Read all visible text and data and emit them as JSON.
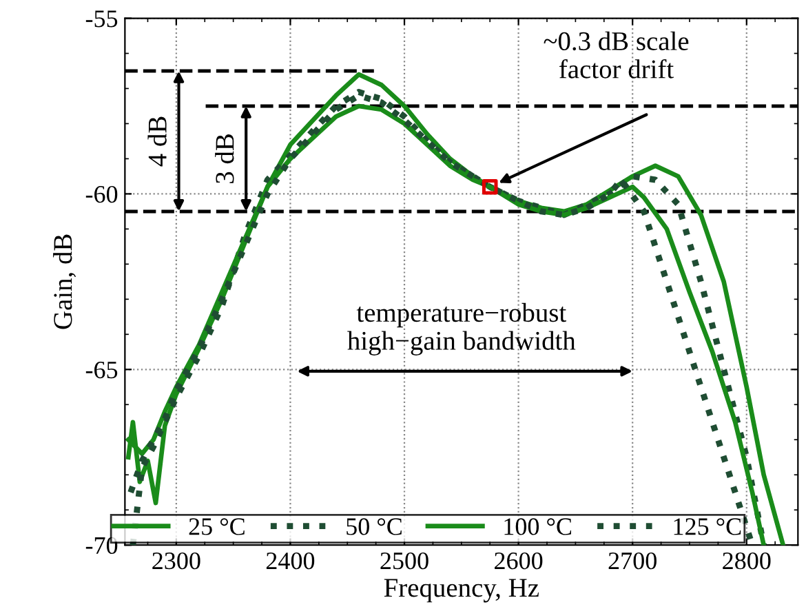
{
  "chart_data": {
    "type": "line",
    "xlabel": "Frequency, Hz",
    "ylabel": "Gain, dB",
    "xlim": [
      2255,
      2845
    ],
    "ylim": [
      -70,
      -55
    ],
    "xticks": [
      2300,
      2400,
      2500,
      2600,
      2700,
      2800
    ],
    "yticks": [
      -70,
      -65,
      -60,
      -55
    ],
    "grid": true,
    "legend": "bottom",
    "series": [
      {
        "name": "25 °C",
        "color": "#1a8c1a",
        "line_style": "solid",
        "x": [
          2258,
          2262,
          2268,
          2275,
          2282,
          2290,
          2300,
          2320,
          2340,
          2360,
          2380,
          2400,
          2420,
          2440,
          2460,
          2480,
          2500,
          2520,
          2540,
          2560,
          2575,
          2600,
          2620,
          2640,
          2660,
          2680,
          2700,
          2720,
          2740,
          2760,
          2780,
          2800,
          2815,
          2832
        ],
        "values": [
          -67.5,
          -66.5,
          -68.2,
          -67.6,
          -68.8,
          -66.6,
          -65.7,
          -64.4,
          -63.0,
          -61.4,
          -59.8,
          -58.6,
          -57.9,
          -57.2,
          -56.6,
          -56.9,
          -57.5,
          -58.3,
          -59.0,
          -59.5,
          -59.8,
          -60.2,
          -60.4,
          -60.5,
          -60.3,
          -59.9,
          -59.5,
          -59.2,
          -59.5,
          -60.6,
          -62.5,
          -65.5,
          -68.0,
          -70.0
        ]
      },
      {
        "name": "50 °C",
        "color": "#1f4d33",
        "line_style": "dotted",
        "x": [
          2262,
          2270,
          2280,
          2290,
          2300,
          2320,
          2340,
          2360,
          2380,
          2400,
          2420,
          2440,
          2460,
          2480,
          2500,
          2520,
          2540,
          2560,
          2575,
          2600,
          2620,
          2640,
          2660,
          2680,
          2700,
          2720,
          2740,
          2760,
          2780,
          2800,
          2815
        ],
        "values": [
          -70.0,
          -67.8,
          -67.2,
          -66.5,
          -65.8,
          -64.6,
          -63.2,
          -61.2,
          -59.6,
          -58.9,
          -58.2,
          -57.5,
          -57.1,
          -57.3,
          -57.8,
          -58.5,
          -59.1,
          -59.5,
          -59.8,
          -60.2,
          -60.4,
          -60.6,
          -60.3,
          -60.0,
          -59.5,
          -59.6,
          -60.3,
          -62.5,
          -65.0,
          -67.5,
          -70.0
        ]
      },
      {
        "name": "100 °C",
        "color": "#1a8c1a",
        "line_style": "solid",
        "x": [
          2258,
          2270,
          2280,
          2290,
          2300,
          2320,
          2340,
          2360,
          2380,
          2400,
          2420,
          2440,
          2460,
          2480,
          2500,
          2520,
          2540,
          2560,
          2575,
          2600,
          2620,
          2640,
          2660,
          2680,
          2700,
          2710,
          2730,
          2750,
          2770,
          2790,
          2805,
          2815
        ],
        "values": [
          -67.0,
          -67.4,
          -67.0,
          -66.2,
          -65.5,
          -64.3,
          -62.8,
          -61.3,
          -59.8,
          -59.0,
          -58.4,
          -57.8,
          -57.5,
          -57.6,
          -58.0,
          -58.6,
          -59.2,
          -59.6,
          -59.8,
          -60.3,
          -60.5,
          -60.6,
          -60.4,
          -60.1,
          -59.8,
          -60.1,
          -61.0,
          -62.8,
          -64.5,
          -66.5,
          -68.5,
          -70.0
        ]
      },
      {
        "name": "125 °C",
        "color": "#1f4d33",
        "line_style": "dotted",
        "x": [
          2260,
          2270,
          2280,
          2290,
          2300,
          2320,
          2340,
          2360,
          2380,
          2400,
          2420,
          2440,
          2460,
          2480,
          2500,
          2520,
          2540,
          2560,
          2575,
          2600,
          2620,
          2640,
          2660,
          2680,
          2690,
          2710,
          2730,
          2750,
          2770,
          2790,
          2805
        ],
        "values": [
          -68.5,
          -67.6,
          -67.0,
          -66.4,
          -65.6,
          -64.4,
          -63.0,
          -61.5,
          -60.0,
          -59.0,
          -58.3,
          -57.6,
          -57.2,
          -57.4,
          -57.9,
          -58.5,
          -59.1,
          -59.5,
          -59.8,
          -60.2,
          -60.5,
          -60.6,
          -60.4,
          -60.0,
          -59.6,
          -60.5,
          -62.5,
          -64.5,
          -66.5,
          -68.5,
          -70.0
        ]
      },
      {
        "type": "scatter",
        "color": "#e00000",
        "marker": "square",
        "x": [
          2575
        ],
        "values": [
          -59.8
        ]
      }
    ],
    "ref_lines": [
      {
        "axis": "y",
        "value": -56.5,
        "line_style": "dashed",
        "color": "#000000"
      },
      {
        "axis": "y",
        "value": -57.5,
        "line_style": "dashed",
        "color": "#000000"
      },
      {
        "axis": "y",
        "value": -60.5,
        "line_style": "dashed",
        "color": "#000000"
      }
    ],
    "annotations": [
      "~0.3 dB scale\nfactor drift",
      "temperature−robust\nhigh−gain bandwidth",
      "4 dB",
      "3 dB"
    ]
  }
}
